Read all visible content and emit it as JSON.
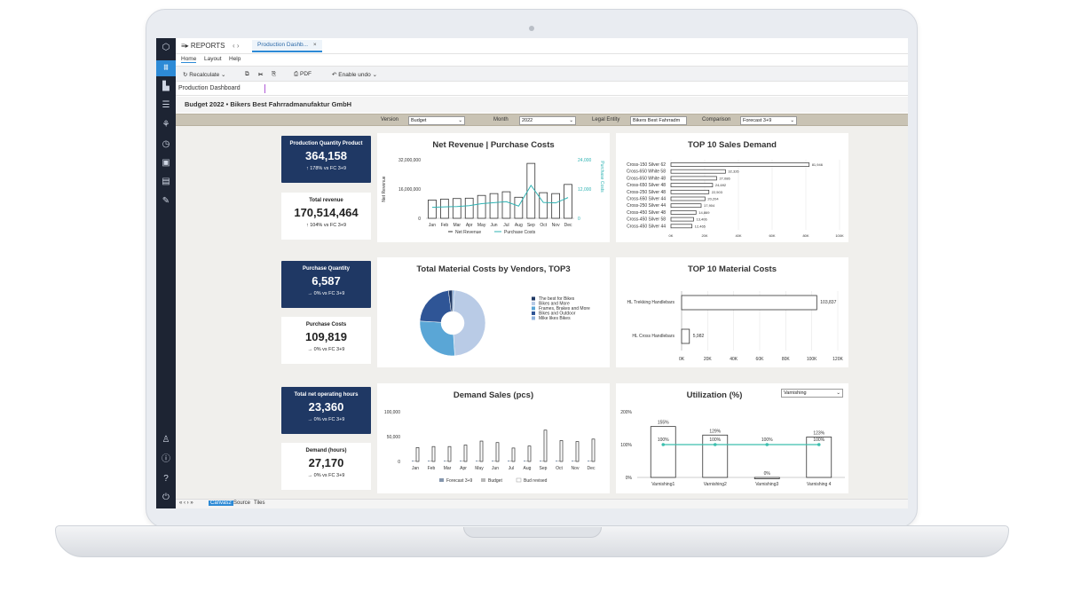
{
  "window": {
    "title": "REPORTS",
    "tab": "Production Dashb...",
    "tab_close": "×",
    "nav": "‹ ›"
  },
  "menu": {
    "home": "Home",
    "layout": "Layout",
    "help": "Help"
  },
  "toolbar": {
    "recalculate": "Recalculate",
    "pdf": "PDF",
    "enable_undo": "Enable undo"
  },
  "address": "Production Dashboard",
  "sheet_title": "Budget 2022 • Bikers Best Fahrradmanufaktur GmbH",
  "filters": {
    "version_label": "Version",
    "version_value": "Budget",
    "month_label": "Month",
    "month_value": "2022",
    "entity_label": "Legal Entity",
    "entity_value": "Bikers Best Fahrradm",
    "comparison_label": "Comparison",
    "comparison_value": "Forecast 3+9"
  },
  "kpis": {
    "prod_qty": {
      "title": "Production Quantity Product",
      "value": "364,158",
      "delta": "178% vs FC 3+9"
    },
    "total_rev": {
      "title": "Total revenue",
      "value": "170,514,464",
      "delta": "104% vs FC 3+9"
    },
    "purch_qty": {
      "title": "Purchase Quantity",
      "value": "6,587",
      "delta": "0% vs FC 3+9"
    },
    "purch_costs": {
      "title": "Purchase Costs",
      "value": "109,819",
      "delta": "0% vs FC 3+9"
    },
    "net_hours": {
      "title": "Total net operating hours",
      "value": "23,360",
      "delta": "0% vs FC 3+9"
    },
    "demand_hours": {
      "title": "Demand (hours)",
      "value": "27,170",
      "delta": "0% vs FC 3+9"
    }
  },
  "bottom_tabs": {
    "canvas": "Canvas2",
    "source": "Source",
    "tiles": "Tiles",
    "nav": "« ‹ › »"
  },
  "utilization_select": "Varnishing",
  "chart_data": [
    {
      "type": "bar",
      "title": "Net Revenue | Purchase Costs",
      "categories": [
        "Jan",
        "Feb",
        "Mar",
        "Apr",
        "May",
        "Jun",
        "Jul",
        "Aug",
        "Sep",
        "Oct",
        "Nov",
        "Dec"
      ],
      "series": [
        {
          "name": "Net Revenue",
          "values": [
            10000000,
            10500000,
            10800000,
            11000000,
            12500000,
            13500000,
            14500000,
            11500000,
            30000000,
            14000000,
            13500000,
            18500000
          ]
        },
        {
          "name": "Purchase Costs",
          "values": [
            4500,
            4700,
            4800,
            5200,
            6000,
            6400,
            6800,
            5000,
            13500,
            6500,
            6300,
            8500
          ]
        }
      ],
      "xlabel": "",
      "ylabel": "Net Revenue",
      "y2label": "Purchase Costs",
      "yticks": [
        "32,000,000",
        "16,000,000",
        "0"
      ],
      "y2ticks": [
        "24,000",
        "12,000",
        "0"
      ],
      "ylim": [
        0,
        32000000
      ],
      "y2lim": [
        0,
        24000
      ],
      "legend": [
        "Net Revenue",
        "Purchase Costs"
      ]
    },
    {
      "type": "bar",
      "title": "TOP 10 Sales Demand",
      "categories": [
        "Cross-150 Silver 62",
        "Cross-650 White 58",
        "Cross-650 White 48",
        "Cross-650 Silver 48",
        "Cross-250 Silver 48",
        "Cross-650 Silver 44",
        "Cross-250 Silver 44",
        "Cross-450 Silver 48",
        "Cross-450 Silver 58",
        "Cross-450 Silver 44"
      ],
      "values": [
        81946,
        32326,
        27086,
        24692,
        22503,
        20204,
        17904,
        14869,
        13406,
        12465
      ],
      "value_labels": [
        "81,946",
        "32,326",
        "27,086",
        "24,692",
        "22,503",
        "20,204",
        "17,904",
        "14,869",
        "13,406",
        "12,465"
      ],
      "xticks": [
        "0K",
        "20K",
        "40K",
        "60K",
        "80K",
        "100K"
      ],
      "xlim": [
        0,
        100000
      ]
    },
    {
      "type": "pie",
      "title": "Total Material Costs by Vendors, TOP3",
      "categories": [
        "The best for Bikes",
        "Bikes and More",
        "Frames, Brakes and More",
        "Bikes and Outdoor",
        "Mike likes Bikes"
      ],
      "values": [
        48,
        27,
        22,
        2,
        1
      ],
      "colors": [
        "#b9cbe6",
        "#5aa6d6",
        "#2f5596",
        "#1f3864",
        "#8fb2dd"
      ]
    },
    {
      "type": "bar",
      "title": "TOP 10 Material Costs",
      "categories": [
        "HL Trekking Handlebars",
        "HL Cross Handlebars"
      ],
      "values": [
        103837,
        5982
      ],
      "value_labels": [
        "103,837",
        "5,982"
      ],
      "xticks": [
        "0K",
        "20K",
        "40K",
        "60K",
        "80K",
        "100K",
        "120K"
      ],
      "xlim": [
        0,
        120000
      ]
    },
    {
      "type": "bar",
      "title": "Demand Sales (pcs)",
      "categories": [
        "Jan",
        "Feb",
        "Mar",
        "Apr",
        "May",
        "Jun",
        "Jul",
        "Aug",
        "Sep",
        "Oct",
        "Nov",
        "Dec"
      ],
      "series": [
        {
          "name": "Forecast 3+9",
          "values": [
            1000,
            1000,
            1000,
            1000,
            1000,
            1000,
            1000,
            1000,
            1000,
            1000,
            1000,
            1000
          ]
        },
        {
          "name": "Budget",
          "values": [
            1000,
            1000,
            1000,
            1000,
            1000,
            1000,
            1000,
            1000,
            1000,
            1000,
            1000,
            1000
          ]
        },
        {
          "name": "Bud revised",
          "values": [
            28000,
            30000,
            30000,
            33000,
            41000,
            38000,
            27000,
            31000,
            63000,
            42000,
            40000,
            45000
          ]
        }
      ],
      "yticks": [
        "100,000",
        "50,000",
        "0"
      ],
      "ylim": [
        0,
        100000
      ],
      "legend": [
        "Forecast 3+9",
        "Budget",
        "Bud revised"
      ]
    },
    {
      "type": "bar",
      "title": "Utilization (%)",
      "categories": [
        "Varnishing1",
        "Varnishing2",
        "Varnishing3",
        "Varnishing 4"
      ],
      "series": [
        {
          "name": "Utilization",
          "values": [
            155,
            129,
            0,
            123
          ],
          "labels": [
            "155%",
            "129%",
            "0%",
            "123%"
          ]
        },
        {
          "name": "Target",
          "values": [
            100,
            100,
            100,
            100
          ],
          "labels": [
            "100%",
            "100%",
            "100%",
            "100%"
          ]
        }
      ],
      "yticks": [
        "200%",
        "100%",
        "0%"
      ],
      "ylim": [
        0,
        200
      ]
    }
  ]
}
